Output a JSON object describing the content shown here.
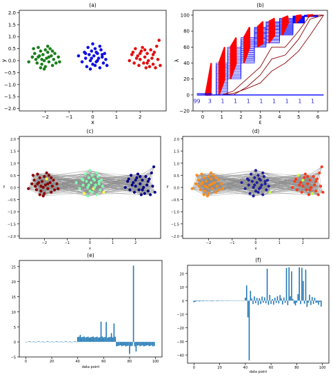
{
  "chart_data": [
    {
      "panel": "a",
      "type": "scatter",
      "title": "(a)",
      "xlabel": "x",
      "ylabel": "y",
      "xlim": [
        -3.1,
        3.1
      ],
      "ylim": [
        -2.1,
        2.1
      ],
      "xticks": [
        -2,
        -1,
        0,
        1,
        2
      ],
      "yticks": [
        2.0,
        1.5,
        1.0,
        0.5,
        0.0,
        -0.5,
        -1.0,
        -1.5,
        -2.0
      ],
      "tick_labels_x": [
        "−2",
        "−1",
        "0",
        "1",
        "2"
      ],
      "tick_labels_y": [
        "2.0",
        "1.5",
        "1.0",
        "0.5",
        "0.0",
        "−0.5",
        "−1.0",
        "−1.5",
        "−2.0"
      ],
      "series": [
        {
          "color": "#1a7f1a",
          "points": [
            [
              -2.7,
              -0.05
            ],
            [
              -2.55,
              0.15
            ],
            [
              -2.45,
              0.3
            ],
            [
              -2.4,
              0.05
            ],
            [
              -2.35,
              -0.1
            ],
            [
              -2.3,
              0.55
            ],
            [
              -2.25,
              0.2
            ],
            [
              -2.2,
              0.4
            ],
            [
              -2.15,
              -0.15
            ],
            [
              -2.1,
              0.25
            ],
            [
              -2.05,
              0.0
            ],
            [
              -2.0,
              -0.25
            ],
            [
              -1.95,
              0.1
            ],
            [
              -1.9,
              0.35
            ],
            [
              -1.85,
              -0.05
            ],
            [
              -1.8,
              0.5
            ],
            [
              -1.75,
              0.2
            ],
            [
              -1.7,
              -0.2
            ],
            [
              -1.65,
              0.05
            ],
            [
              -1.6,
              0.3
            ],
            [
              -1.55,
              -0.1
            ],
            [
              -1.45,
              0.15
            ],
            [
              -1.4,
              -0.05
            ],
            [
              -2.2,
              -0.3
            ],
            [
              -2.5,
              0.5
            ],
            [
              -1.9,
              0.6
            ],
            [
              -2.3,
              0.15
            ],
            [
              -2.0,
              0.45
            ],
            [
              -1.7,
              0.4
            ],
            [
              -2.05,
              -0.35
            ],
            [
              -1.85,
              0.15
            ],
            [
              -2.15,
              0.05
            ]
          ]
        },
        {
          "color": "#1010e0",
          "points": [
            [
              -0.6,
              0.2
            ],
            [
              -0.45,
              -0.05
            ],
            [
              -0.35,
              0.35
            ],
            [
              -0.3,
              0.1
            ],
            [
              -0.25,
              -0.25
            ],
            [
              -0.2,
              0.55
            ],
            [
              -0.15,
              0.25
            ],
            [
              -0.1,
              0.0
            ],
            [
              -0.05,
              0.4
            ],
            [
              0.0,
              -0.15
            ],
            [
              0.0,
              0.7
            ],
            [
              0.05,
              0.2
            ],
            [
              0.1,
              0.5
            ],
            [
              0.15,
              -0.05
            ],
            [
              0.2,
              0.3
            ],
            [
              0.25,
              0.1
            ],
            [
              0.3,
              -0.3
            ],
            [
              0.35,
              0.45
            ],
            [
              0.4,
              0.15
            ],
            [
              0.45,
              -0.1
            ],
            [
              0.5,
              0.3
            ],
            [
              0.55,
              0.05
            ],
            [
              0.6,
              -0.2
            ],
            [
              -0.1,
              -0.35
            ],
            [
              0.15,
              0.35
            ],
            [
              -0.3,
              0.3
            ],
            [
              0.3,
              0.6
            ],
            [
              0.1,
              -0.2
            ],
            [
              -0.05,
              0.1
            ],
            [
              0.4,
              0.25
            ],
            [
              0.2,
              0.0
            ]
          ]
        },
        {
          "color": "#e01010",
          "points": [
            [
              1.55,
              0.0
            ],
            [
              1.65,
              0.25
            ],
            [
              1.75,
              -0.1
            ],
            [
              1.8,
              0.5
            ],
            [
              1.9,
              0.2
            ],
            [
              1.95,
              -0.2
            ],
            [
              2.0,
              0.05
            ],
            [
              2.05,
              0.4
            ],
            [
              2.1,
              0.55
            ],
            [
              2.15,
              -0.1
            ],
            [
              2.2,
              0.15
            ],
            [
              2.25,
              -0.3
            ],
            [
              2.3,
              0.3
            ],
            [
              2.35,
              0.0
            ],
            [
              2.4,
              -0.25
            ],
            [
              2.45,
              0.45
            ],
            [
              2.5,
              0.1
            ],
            [
              2.55,
              -0.15
            ],
            [
              2.6,
              0.35
            ],
            [
              2.65,
              -0.3
            ],
            [
              2.7,
              0.6
            ],
            [
              2.75,
              0.05
            ],
            [
              2.8,
              0.85
            ],
            [
              2.85,
              -0.2
            ],
            [
              1.85,
              0.1
            ],
            [
              2.0,
              0.3
            ],
            [
              2.3,
              -0.1
            ],
            [
              2.55,
              0.25
            ],
            [
              2.2,
              0.45
            ],
            [
              1.7,
              0.35
            ]
          ]
        }
      ]
    },
    {
      "panel": "b",
      "type": "line",
      "title": "(b)",
      "xlabel": "ε",
      "ylabel": "λ",
      "xlim": [
        -0.5,
        6.5
      ],
      "ylim": [
        -20,
        106
      ],
      "xticks": [
        0,
        1,
        2,
        3,
        4,
        5,
        6
      ],
      "yticks": [
        100,
        80,
        60,
        40,
        20,
        0,
        -20
      ],
      "tick_labels_x": [
        "0",
        "1",
        "2",
        "3",
        "4",
        "5",
        "6"
      ],
      "tick_labels_y": [
        "100",
        "80",
        "60",
        "40",
        "20",
        "0",
        "−20"
      ],
      "epsilon_steps": [
        0.0,
        0.7,
        1.3,
        2.0,
        2.7,
        3.3,
        4.0,
        4.7,
        5.3,
        6.0
      ],
      "zero_eigenvalue_counts": [
        "99",
        "3",
        "1",
        "1",
        "1",
        "1",
        "1",
        "1",
        "1",
        "1"
      ],
      "series": [
        {
          "color": "#ff0000",
          "role": "upper band",
          "values": [
            0,
            40,
            60,
            72,
            85,
            92,
            96,
            99,
            100,
            100
          ]
        },
        {
          "color": "#0000ff",
          "role": "lower band",
          "values": [
            0,
            0,
            20,
            40,
            60,
            65,
            75,
            90,
            98,
            100
          ]
        },
        {
          "color": "#8b0000",
          "role": "outlier eigenvalues",
          "values": [
            0,
            0,
            5,
            20,
            35,
            60,
            60,
            80,
            100,
            100
          ]
        }
      ]
    },
    {
      "panel": "c",
      "type": "scatter",
      "title": "(c)",
      "xlabel": "x",
      "ylabel": "y",
      "xlim": [
        -3.1,
        3.1
      ],
      "ylim": [
        -2.1,
        2.1
      ],
      "xticks": [
        -2,
        -1,
        0,
        1,
        2
      ],
      "tick_labels_x": [
        "−2",
        "−1",
        "0",
        "1",
        "2"
      ],
      "tick_labels_y": [
        "2.0",
        "1.5",
        "1.0",
        "0.5",
        "0.0",
        "−0.5",
        "−1.0",
        "−1.5",
        "−2.0"
      ],
      "cluster_colors": [
        "#8b0000",
        "#7fffb0",
        "#00008b",
        "#ffff40"
      ],
      "edge_color": "#888888"
    },
    {
      "panel": "d",
      "type": "scatter",
      "title": "(d)",
      "xlabel": "x",
      "ylabel": "y",
      "xlim": [
        -3.1,
        3.1
      ],
      "ylim": [
        -2.1,
        2.1
      ],
      "xticks": [
        -2,
        -1,
        0,
        1,
        2
      ],
      "tick_labels_x": [
        "−2",
        "−1",
        "0",
        "1",
        "2"
      ],
      "tick_labels_y": [
        "2.0",
        "1.5",
        "1.0",
        "0.5",
        "0.0",
        "−0.5",
        "−1.0",
        "−1.5",
        "−2.0"
      ],
      "cluster_colors": [
        "#ff8c1a",
        "#1f1fa0",
        "#ff3b1a",
        "#c8ff40"
      ],
      "edge_color": "#888888"
    },
    {
      "panel": "e",
      "type": "bar",
      "title": "(e)",
      "xlabel": "data point",
      "ylabel": "",
      "xlim": [
        -5,
        105
      ],
      "ylim": [
        -5,
        27
      ],
      "xticks": [
        0,
        20,
        40,
        60,
        80,
        100
      ],
      "yticks": [
        25,
        20,
        15,
        10,
        5,
        0,
        -5
      ],
      "tick_labels_x": [
        "0",
        "20",
        "40",
        "60",
        "80",
        "100"
      ],
      "tick_labels_y": [
        "25",
        "20",
        "15",
        "10",
        "5",
        "0",
        "−5"
      ],
      "color": "#1f77b4",
      "segments": [
        {
          "from": 0,
          "to": 40,
          "value": 0.05
        },
        {
          "from": 40,
          "to": 70,
          "value": 1.6
        },
        {
          "from": 70,
          "to": 100,
          "value": -1.3
        }
      ],
      "spikes": [
        [
          42,
          2.3
        ],
        [
          58,
          6.7
        ],
        [
          62,
          6.6
        ],
        [
          66,
          2.9
        ],
        [
          68,
          6.1
        ],
        [
          80,
          -4.0
        ],
        [
          83,
          25.3
        ],
        [
          85,
          -3.2
        ]
      ]
    },
    {
      "panel": "f",
      "type": "bar",
      "title": "(f)",
      "xlabel": "data point",
      "ylabel": "",
      "xlim": [
        -5,
        105
      ],
      "ylim": [
        -46,
        26
      ],
      "xticks": [
        0,
        20,
        40,
        60,
        80,
        100
      ],
      "yticks": [
        20,
        10,
        0,
        -10,
        -20,
        -30,
        -40
      ],
      "tick_labels_x": [
        "0",
        "20",
        "40",
        "60",
        "80",
        "100"
      ],
      "tick_labels_y": [
        "20",
        "10",
        "0",
        "−10",
        "−20",
        "−30",
        "−40"
      ],
      "color": "#1f77b4",
      "values": [
        -1.2,
        -0.8,
        -0.5,
        -0.3,
        -0.6,
        -0.4,
        -0.2,
        -0.5,
        -0.3,
        -0.2,
        -0.4,
        -0.1,
        -0.3,
        -0.2,
        -0.5,
        -0.3,
        -0.1,
        -0.2,
        -0.4,
        -0.3,
        -0.1,
        -0.2,
        -0.3,
        -0.1,
        -0.2,
        -0.1,
        -0.3,
        -0.2,
        -0.1,
        -0.2,
        -0.1,
        -0.1,
        -0.2,
        -0.1,
        -0.1,
        -0.2,
        -0.1,
        -0.1,
        -0.1,
        -0.1,
        2.2,
        11.2,
        -12.3,
        -44.0,
        7.2,
        1.5,
        -2.5,
        3.1,
        -1.8,
        2.0,
        -3.2,
        1.8,
        -2.5,
        3.0,
        -1.5,
        2.4,
        -2.0,
        23.5,
        -3.1,
        4.2,
        -2.4,
        1.1,
        -3.0,
        2.2,
        -1.8,
        3.3,
        -2.1,
        4.1,
        1.6,
        -2.8,
        2.3,
        -1.6,
        24.0,
        -3.3,
        24.5,
        3.2,
        21.6,
        1.1,
        -2.2,
        -3.5,
        -1.4,
        4.8,
        24.5,
        -2.6,
        24.2,
        14.5,
        -2.2,
        22.8,
        -4.6,
        -1.5,
        4.4,
        -3.2,
        2.7,
        -2.4,
        2.1,
        -1.6,
        -1.3,
        -3.1,
        -0.9,
        -4.4
      ]
    }
  ]
}
